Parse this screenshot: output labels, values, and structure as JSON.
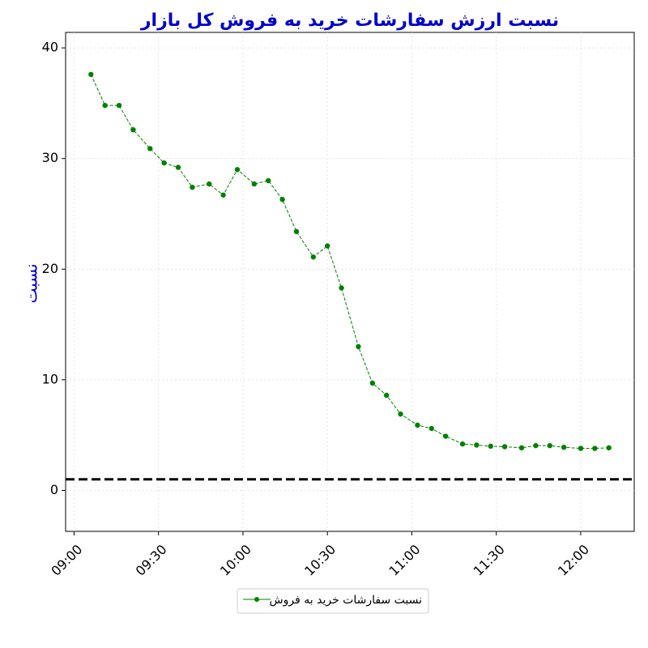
{
  "chart_data": {
    "type": "line",
    "title": "نسبت ارزش سفارشات خرید به فروش کل بازار",
    "y_label": "نسبت",
    "x": [
      "09:06",
      "09:11",
      "09:16",
      "09:21",
      "09:27",
      "09:32",
      "09:37",
      "09:42",
      "09:48",
      "09:53",
      "09:58",
      "10:04",
      "10:09",
      "10:14",
      "10:19",
      "10:25",
      "10:30",
      "10:35",
      "10:41",
      "10:46",
      "10:51",
      "10:56",
      "11:02",
      "11:07",
      "11:12",
      "11:18",
      "11:23",
      "11:28",
      "11:33",
      "11:39",
      "11:44",
      "11:49",
      "11:54",
      "12:00",
      "12:05",
      "12:10"
    ],
    "series": [
      {
        "name": "نسبت سفارشات خرید به فروش",
        "color": "#008000",
        "values": [
          37.6,
          34.8,
          34.8,
          32.6,
          30.9,
          29.6,
          29.2,
          27.4,
          27.7,
          26.7,
          29.0,
          27.7,
          28.0,
          26.3,
          23.4,
          21.1,
          22.1,
          18.3,
          13.0,
          9.7,
          8.6,
          6.9,
          5.9,
          5.6,
          4.9,
          4.2,
          4.1,
          4.0,
          3.95,
          3.85,
          4.05,
          4.05,
          3.9,
          3.8,
          3.8,
          3.85
        ]
      }
    ],
    "hline": 1,
    "xlim": [
      "08:57",
      "12:19"
    ],
    "xticks": [
      "09:00",
      "09:30",
      "10:00",
      "10:30",
      "11:00",
      "11:30",
      "12:00"
    ],
    "ylim": [
      -3.7,
      41.4
    ],
    "yticks": [
      0,
      10,
      20,
      30,
      40
    ],
    "grid": true,
    "legend": "bottom"
  }
}
